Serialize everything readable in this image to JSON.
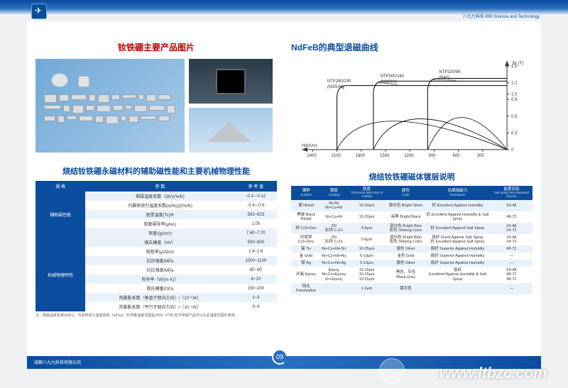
{
  "banner_right": "八九九科技 899 Science and Technology",
  "left": {
    "title": "钕铁硼主要产品图片",
    "subtitle": "烧结钕铁硼永磁材料的辅助磁性能和主要机械物理性能",
    "table": {
      "headers": [
        "规 格",
        "参 数",
        "参 考 值"
      ],
      "group1_label": "辅助磁性能",
      "group1_rows": [
        [
          "剩磁温度系数（(Br)/(%/K)",
          "-0.1~-0.12"
        ],
        [
          "内禀矫顽力温度系数(α(Hcj))/(%/K)",
          "-0.4~-0.6"
        ],
        [
          "居里温度(Tc)/K",
          "583~623"
        ],
        [
          "回复磁导率(μrec)",
          "1.05"
        ],
        [
          "密度/(g/cm³)",
          "7.40~7.70"
        ]
      ],
      "group2_label": "机械物理特性",
      "group2_rows": [
        [
          "维氏硬度（HV）",
          "500~600"
        ],
        [
          "电阻率(μ)/Ωcm",
          "1.4~1.6"
        ],
        [
          "抗压强度/MPa",
          "1000~1100"
        ],
        [
          "抗拉强度/MPa",
          "80~90"
        ],
        [
          "热导率（W/(m·K)）",
          "8~10"
        ],
        [
          "杨氏模量/GPa",
          "150~200"
        ],
        [
          "热膨胀系数（垂直于取向方向）/（10⁻⁶/K）",
          "1~3"
        ],
        [
          "热膨胀系数（平行于取向方向）/（10⁻⁶/K）",
          "3~4"
        ]
      ],
      "footnote": "注：剩磁温度系数(α(Br))、内禀矫顽力温度系数（α(Hcj)）的测量温度范围是293K~373K,但不排除产品可以在此温度范围外使用。"
    }
  },
  "right": {
    "chart": {
      "title": "NdFeB的典型退磁曲线",
      "y_label": "Br (T)",
      "x_label": "H(kA/m)",
      "y_ticks": [
        "1.5",
        "1.2",
        "1.0",
        "0.9",
        "0.6",
        "0.3",
        "0"
      ],
      "x_ticks": [
        "2400",
        "2100",
        "1800",
        "1500",
        "1200",
        "900",
        "600",
        "300"
      ],
      "curves": [
        {
          "name": "NTP280/200",
          "sub": "(N35UH)",
          "x_knee": 2100,
          "y_top": 1.15,
          "lblx": 50,
          "lbly": 35
        },
        {
          "name": "NTP300/160",
          "sub": "(N38SH)",
          "x_knee": 1650,
          "y_top": 1.23,
          "lblx": 125,
          "lbly": 28
        },
        {
          "name": "NTP320/96",
          "sub": "(N40)",
          "x_knee": 980,
          "y_top": 1.28,
          "lblx": 208,
          "lbly": 22
        }
      ]
    },
    "table2": {
      "title": "烧结钕铁硼磁体镀层说明",
      "headers": [
        {
          "zh": "镀种",
          "en": "Surface"
        },
        {
          "zh": "镀层",
          "en": "Coating"
        },
        {
          "zh": "厚度",
          "en": "Thickness (Microns) of coating"
        },
        {
          "zh": "颜色",
          "en": "Color"
        },
        {
          "zh": "抗腐蚀能力",
          "en": "Resistance"
        },
        {
          "zh": "盐雾实验",
          "en": "Salt spray Test Standard (hours)"
        }
      ],
      "rows": [
        [
          "镍 Nickel",
          "Ni+Ni\nNi+Cu+Ni",
          "10-20μm",
          "银白色 Bright Silver",
          "好 Excellent Against Humidity",
          "24-48"
        ],
        [
          "黑镍 Black Nickel",
          "Ni+Cu+Ni",
          "10-20μm",
          "亮黑 Bright Black",
          "好 Excellent Against Humidity & Salt spray",
          "48-72"
        ],
        [
          "锌 Cr3+Zinc",
          "ZN\n彩锌 C-Zn",
          "3-8μm",
          "蓝白色 Bright Blue\n彩色 Shining Color",
          "好 Excellent Against Salt Spray",
          "24-48\n24-72"
        ],
        [
          "环保锌 Cr3+Zinc",
          "ZN\n彩锌 C-Zn",
          "5-8μm",
          "蓝白色 Bright Blue\n彩色 Shining Color",
          "良好 Good Against Salt Spray\n好 Excellent Against Salt Spray",
          "16-48\n24-72"
        ],
        [
          "锡 Tin",
          "Ni+Cu+Ni+Sn",
          "10-25μm",
          "银色 Silver",
          "极好 Superior Against Humidity",
          "48-72"
        ],
        [
          "金 Gold",
          "Ni+Cu+Ni+Au",
          "6-10μm",
          "金色 Gold",
          "极好 Superior Against Humidity",
          "—"
        ],
        [
          "银 Ag",
          "Ni+Cu+Ni+Ag",
          "6-10μm",
          "银色 Silver",
          "极好 Superior Against Humidity",
          "—"
        ],
        [
          "环氧 Epoxy",
          "Epoxy\nNi+Cu+Epoxy\nZn+Epoxy",
          "10-15μm\n10-25μm\n10-25μm",
          "黑色、灰色 Black,Grey",
          "极好\nExcellent Against Humidity & Salt Spray",
          "24-48\n48-72\n48-72"
        ],
        [
          "钝化 Passivation",
          "",
          "1-2μm",
          "银灰色",
          "            ",
          "—"
        ]
      ]
    }
  },
  "footer_left": "成都八九九科技有限公司",
  "page_num": "09",
  "watermark": "www.ltbzc.com"
}
